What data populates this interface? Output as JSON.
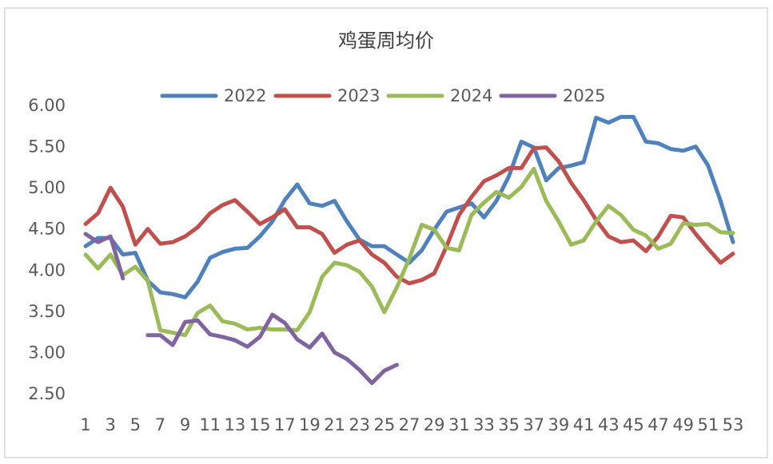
{
  "chart_data": {
    "type": "line",
    "title": "鸡蛋周均价",
    "categories": [
      1,
      null,
      3,
      null,
      5,
      null,
      7,
      null,
      9,
      null,
      11,
      null,
      13,
      null,
      15,
      null,
      17,
      null,
      19,
      null,
      21,
      null,
      23,
      null,
      25,
      null,
      27,
      null,
      29,
      null,
      31,
      null,
      33,
      null,
      35,
      null,
      37,
      null,
      39,
      null,
      41,
      null,
      43,
      null,
      45,
      null,
      47,
      null,
      49,
      null,
      51,
      null,
      53
    ],
    "series": [
      {
        "name": "2022",
        "color": "#4f81bd",
        "values": [
          4.3,
          4.4,
          4.4,
          4.2,
          4.22,
          3.88,
          3.74,
          3.72,
          3.68,
          3.87,
          4.16,
          4.23,
          4.27,
          4.28,
          4.42,
          4.6,
          4.86,
          5.05,
          4.82,
          4.79,
          4.85,
          4.6,
          4.38,
          4.3,
          4.3,
          4.2,
          4.1,
          4.25,
          4.5,
          4.72,
          4.77,
          4.82,
          4.65,
          4.85,
          5.15,
          5.57,
          5.5,
          5.1,
          5.25,
          5.28,
          5.32,
          5.86,
          5.8,
          5.87,
          5.87,
          5.57,
          5.55,
          5.48,
          5.46,
          5.51,
          5.28,
          4.85,
          4.35
        ]
      },
      {
        "name": "2023",
        "color": "#c0504d",
        "values": [
          4.57,
          4.7,
          5.01,
          4.78,
          4.32,
          4.51,
          4.33,
          4.35,
          4.42,
          4.53,
          4.7,
          4.8,
          4.86,
          4.72,
          4.57,
          4.65,
          4.75,
          4.53,
          4.53,
          4.45,
          4.22,
          4.32,
          4.37,
          4.2,
          4.1,
          3.93,
          3.85,
          3.89,
          3.97,
          4.3,
          4.68,
          4.9,
          5.09,
          5.16,
          5.25,
          5.25,
          5.49,
          5.5,
          5.33,
          5.07,
          4.86,
          4.62,
          4.42,
          4.35,
          4.37,
          4.24,
          4.42,
          4.67,
          4.65,
          4.45,
          4.27,
          4.1,
          4.21
        ]
      },
      {
        "name": "2024",
        "color": "#9bbb59",
        "values": [
          4.2,
          4.03,
          4.2,
          3.95,
          4.05,
          3.88,
          3.28,
          3.25,
          3.22,
          3.49,
          3.58,
          3.39,
          3.36,
          3.29,
          3.31,
          3.29,
          3.29,
          3.28,
          3.5,
          3.93,
          4.1,
          4.07,
          3.99,
          3.81,
          3.5,
          3.8,
          4.15,
          4.56,
          4.5,
          4.28,
          4.25,
          4.68,
          4.83,
          4.96,
          4.89,
          5.02,
          5.24,
          4.85,
          4.6,
          4.32,
          4.37,
          4.6,
          4.79,
          4.68,
          4.5,
          4.43,
          4.27,
          4.33,
          4.58,
          4.56,
          4.57,
          4.47,
          4.46
        ]
      },
      {
        "name": "2025",
        "color": "#8064a2",
        "values": [
          4.45,
          4.35,
          4.42,
          3.91,
          null,
          3.22,
          3.22,
          3.1,
          3.38,
          3.4,
          3.23,
          3.2,
          3.16,
          3.08,
          3.2,
          3.47,
          3.37,
          3.17,
          3.07,
          3.24,
          3.01,
          2.93,
          2.8,
          2.64,
          2.79,
          2.86,
          null,
          null,
          null,
          null,
          null,
          null,
          null,
          null,
          null,
          null,
          null,
          null,
          null,
          null,
          null,
          null,
          null,
          null,
          null,
          null,
          null,
          null,
          null,
          null,
          null,
          null,
          null
        ]
      }
    ],
    "ylim": [
      2.5,
      6.0
    ],
    "yticks": [
      {
        "value": 2.5,
        "label": "2.50"
      },
      {
        "value": 3.0,
        "label": "3.00"
      },
      {
        "value": 3.5,
        "label": "3.50"
      },
      {
        "value": 4.0,
        "label": "4.00"
      },
      {
        "value": 4.5,
        "label": "4.50"
      },
      {
        "value": 5.0,
        "label": "5.00"
      },
      {
        "value": 5.5,
        "label": "5.50"
      },
      {
        "value": 6.0,
        "label": "6.00"
      }
    ],
    "grid": false,
    "legend": "top"
  }
}
